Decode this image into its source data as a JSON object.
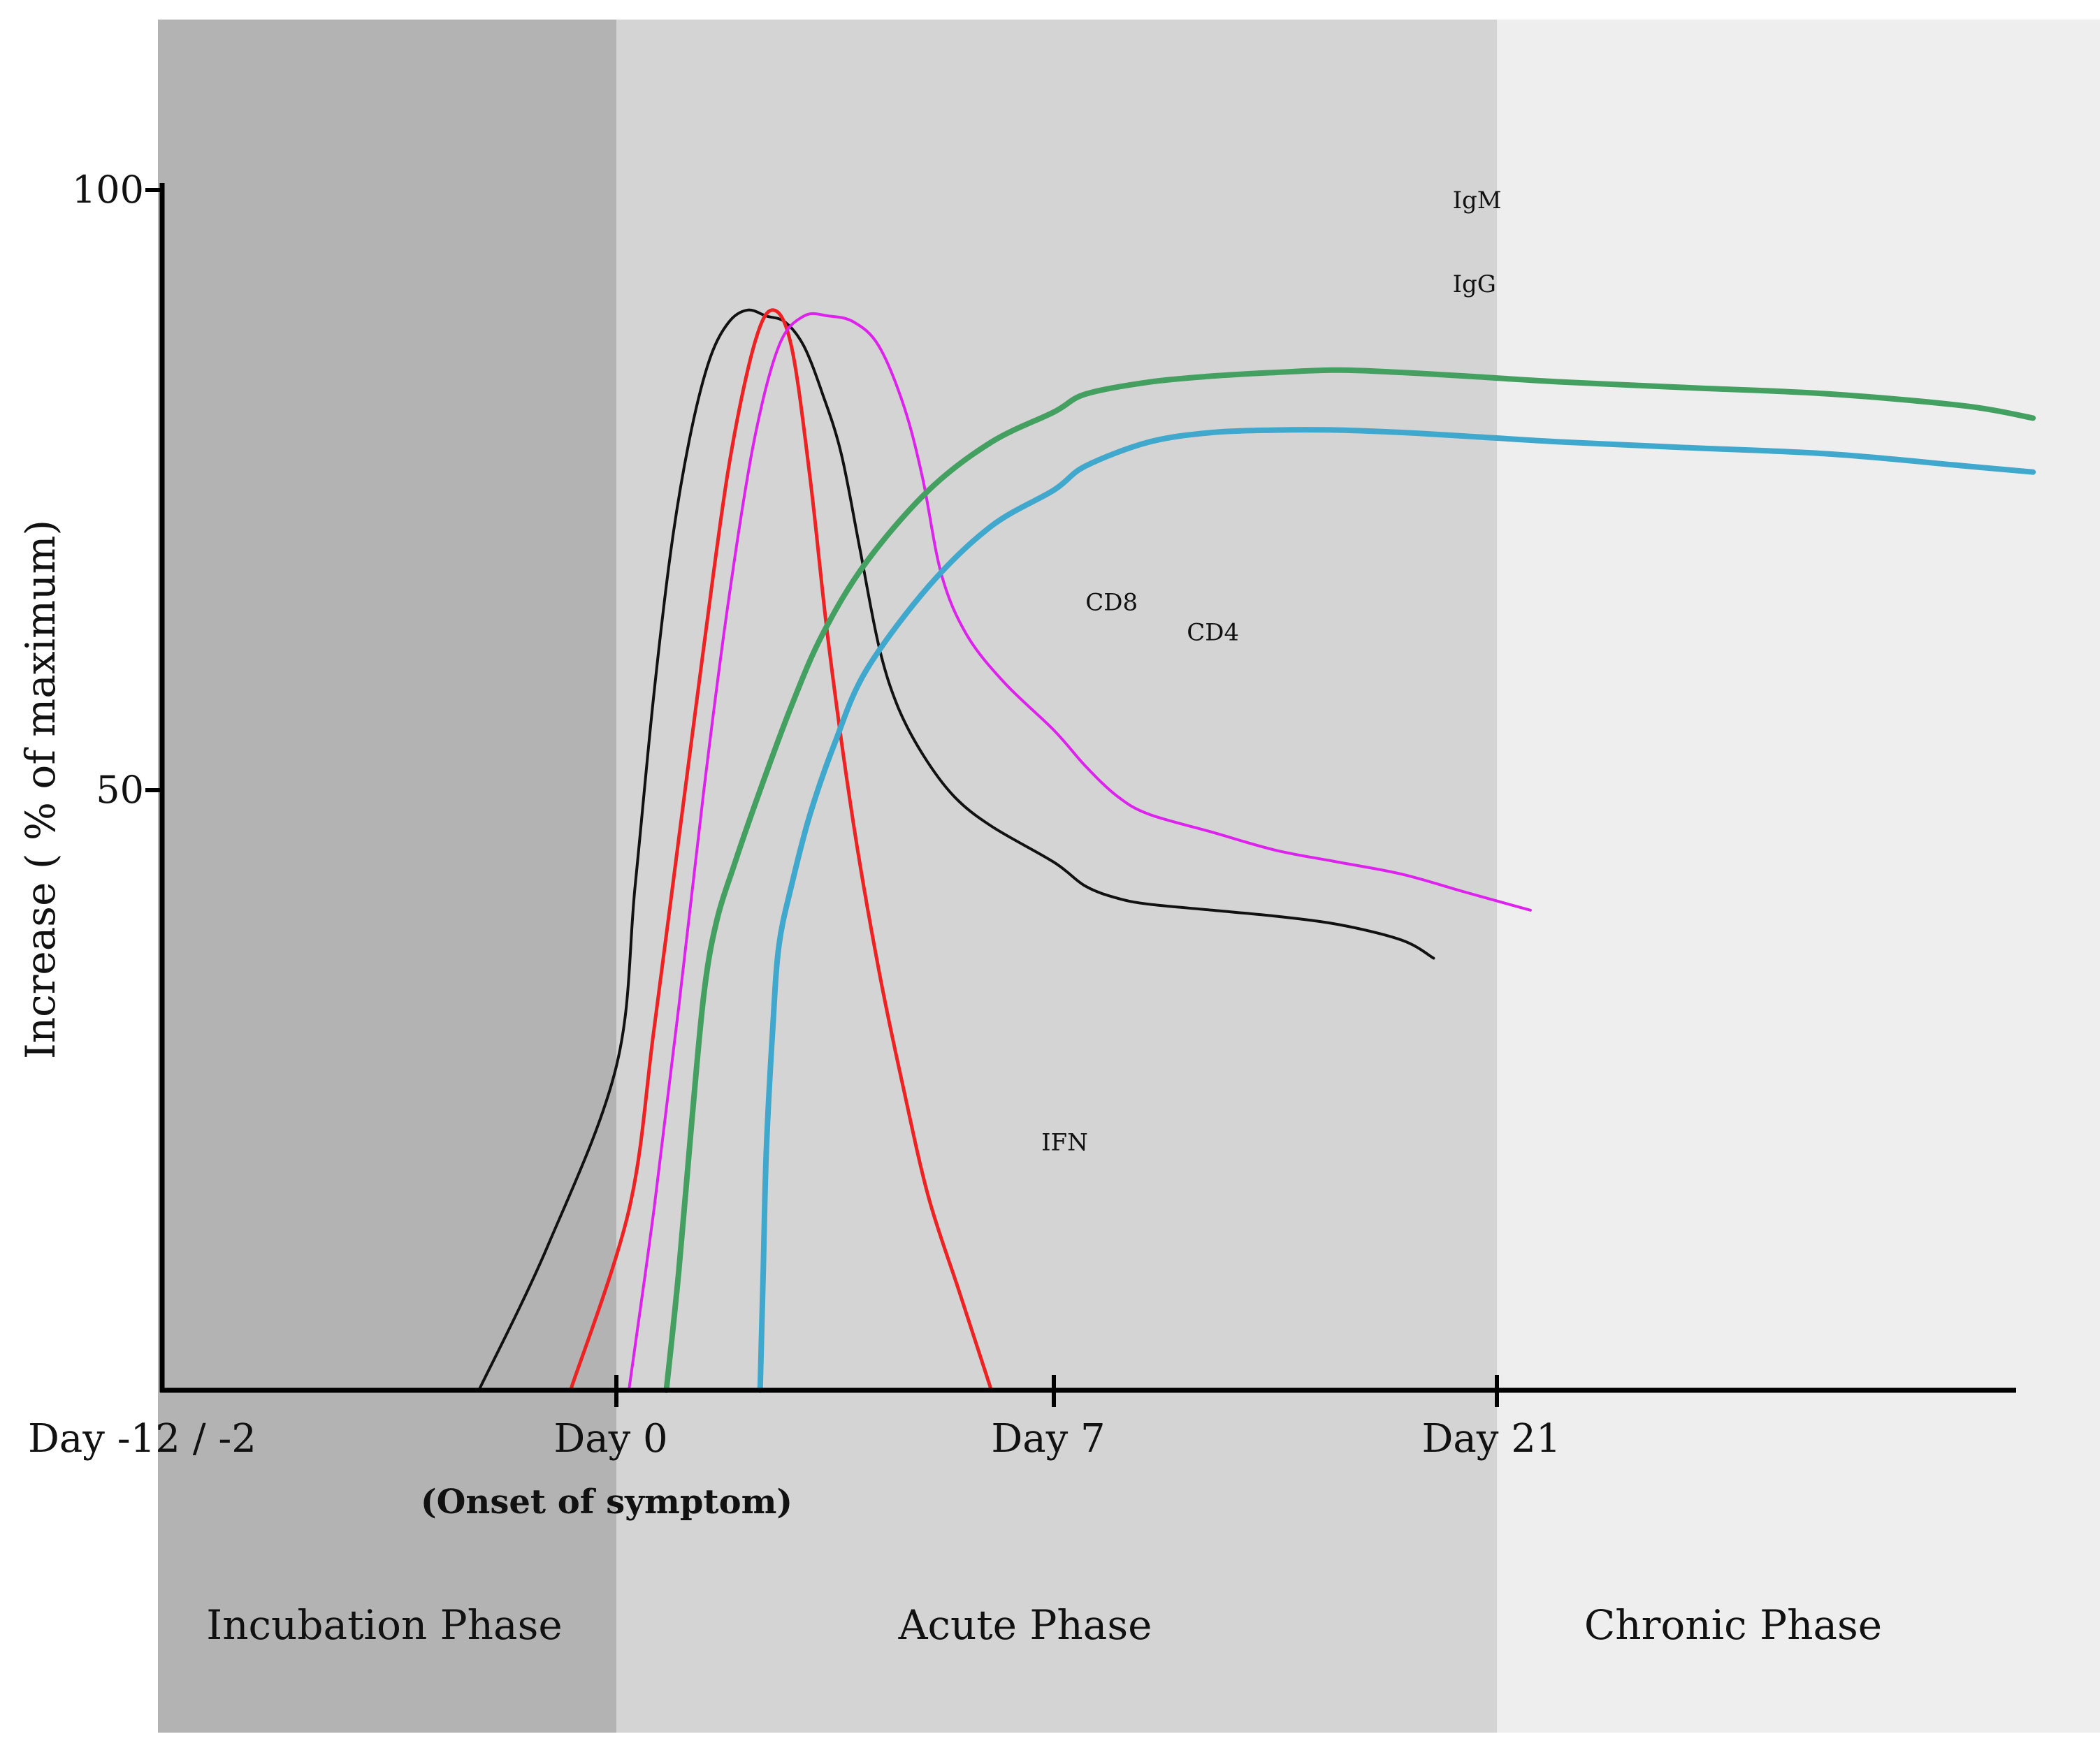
{
  "chart_data": {
    "type": "line",
    "title": "",
    "xlabel": "",
    "ylabel": "Increase ( % of maximum)",
    "ylim": [
      0,
      100
    ],
    "yticks": [
      {
        "value": 50,
        "label": "50"
      },
      {
        "value": 100,
        "label": "100"
      }
    ],
    "xticks": [
      {
        "day": -2,
        "label": "Day -12 / -2"
      },
      {
        "day": 0,
        "label": "Day 0"
      },
      {
        "day": 7,
        "label": "Day 7"
      },
      {
        "day": 21,
        "label": "Day 21"
      }
    ],
    "xtick_sublabel": {
      "day": 0,
      "label": "(Onset of symptom)"
    },
    "phases": [
      {
        "name": "Incubation Phase",
        "start_day": -2,
        "end_day": 0,
        "color": "#b3b3b3"
      },
      {
        "name": "Acute Phase",
        "start_day": 0,
        "end_day": 21,
        "color": "#d4d4d4"
      },
      {
        "name": "Chronic Phase",
        "start_day": 21,
        "end_day": 30,
        "color": "#eeeeee"
      }
    ],
    "series": [
      {
        "name": "CD8",
        "color": "#111111",
        "width": 4,
        "label_at": {
          "x": 8.0,
          "y": 65
        },
        "points": [
          [
            -0.6,
            0
          ],
          [
            -0.3,
            12
          ],
          [
            0,
            27
          ],
          [
            0.3,
            42
          ],
          [
            0.6,
            58
          ],
          [
            0.9,
            71
          ],
          [
            1.2,
            80
          ],
          [
            1.5,
            86
          ],
          [
            1.8,
            89
          ],
          [
            2.1,
            90
          ],
          [
            2.4,
            89.5
          ],
          [
            2.7,
            89
          ],
          [
            3.0,
            87
          ],
          [
            3.3,
            83
          ],
          [
            3.6,
            78
          ],
          [
            3.9,
            70
          ],
          [
            4.2,
            62
          ],
          [
            4.5,
            57
          ],
          [
            4.9,
            53
          ],
          [
            5.4,
            49.5
          ],
          [
            6.0,
            47
          ],
          [
            7.0,
            44
          ],
          [
            8.0,
            42
          ],
          [
            9.0,
            41
          ],
          [
            10.0,
            40.5
          ],
          [
            12.0,
            40
          ],
          [
            14.0,
            39.5
          ],
          [
            16.0,
            38.8
          ],
          [
            18.0,
            37.5
          ],
          [
            19.0,
            36
          ]
        ]
      },
      {
        "name": "IFN",
        "color": "#ee2222",
        "width": 5,
        "label_at": {
          "x": 6.8,
          "y": 20
        },
        "points": [
          [
            -0.2,
            0
          ],
          [
            0.2,
            15
          ],
          [
            0.6,
            30
          ],
          [
            1.0,
            46
          ],
          [
            1.4,
            62
          ],
          [
            1.8,
            77
          ],
          [
            2.2,
            87
          ],
          [
            2.5,
            90
          ],
          [
            2.8,
            87
          ],
          [
            3.1,
            76
          ],
          [
            3.4,
            62
          ],
          [
            3.8,
            47
          ],
          [
            4.2,
            35
          ],
          [
            4.6,
            25
          ],
          [
            5.0,
            16
          ],
          [
            5.5,
            8
          ],
          [
            6.0,
            0
          ]
        ]
      },
      {
        "name": "CD4",
        "color": "#dd22ee",
        "width": 4,
        "label_at": {
          "x": 11.2,
          "y": 62.5
        },
        "points": [
          [
            0.2,
            0
          ],
          [
            0.6,
            15
          ],
          [
            1.0,
            32
          ],
          [
            1.4,
            50
          ],
          [
            1.8,
            66
          ],
          [
            2.2,
            79
          ],
          [
            2.6,
            87
          ],
          [
            3.0,
            89.5
          ],
          [
            3.4,
            89.5
          ],
          [
            3.8,
            89
          ],
          [
            4.2,
            87
          ],
          [
            4.6,
            82
          ],
          [
            4.9,
            76
          ],
          [
            5.2,
            68
          ],
          [
            5.6,
            63
          ],
          [
            6.2,
            59
          ],
          [
            7.0,
            55
          ],
          [
            8.0,
            52
          ],
          [
            9.0,
            49.5
          ],
          [
            10.0,
            48
          ],
          [
            12.0,
            46.5
          ],
          [
            14.0,
            45
          ],
          [
            16.0,
            44
          ],
          [
            18.0,
            43
          ],
          [
            20.0,
            41.5
          ],
          [
            21.5,
            40
          ]
        ]
      },
      {
        "name": "IgM",
        "color": "#44a060",
        "width": 8,
        "label_at": {
          "x": 19.6,
          "y": 98.5
        },
        "points": [
          [
            0.8,
            0
          ],
          [
            1.0,
            10
          ],
          [
            1.2,
            22
          ],
          [
            1.4,
            33
          ],
          [
            1.6,
            39
          ],
          [
            1.9,
            44
          ],
          [
            2.3,
            50
          ],
          [
            2.8,
            57
          ],
          [
            3.3,
            63
          ],
          [
            4.0,
            69
          ],
          [
            5.0,
            75
          ],
          [
            6.0,
            79
          ],
          [
            7.0,
            81.5
          ],
          [
            8.0,
            83
          ],
          [
            10.0,
            84
          ],
          [
            12.0,
            84.5
          ],
          [
            14.0,
            84.8
          ],
          [
            16.0,
            85
          ],
          [
            18.0,
            84.8
          ],
          [
            20.0,
            84.5
          ],
          [
            22.0,
            84
          ],
          [
            24.0,
            83.5
          ],
          [
            26.0,
            83
          ],
          [
            28.0,
            82
          ],
          [
            29.0,
            81
          ]
        ]
      },
      {
        "name": "IgG",
        "color": "#40a8cc",
        "width": 8,
        "label_at": {
          "x": 19.6,
          "y": 91.5
        },
        "points": [
          [
            2.3,
            0
          ],
          [
            2.35,
            10
          ],
          [
            2.4,
            20
          ],
          [
            2.5,
            30
          ],
          [
            2.6,
            37
          ],
          [
            2.8,
            42
          ],
          [
            3.1,
            48
          ],
          [
            3.5,
            54
          ],
          [
            4.0,
            60
          ],
          [
            5.0,
            67
          ],
          [
            6.0,
            72
          ],
          [
            7.0,
            75
          ],
          [
            8.0,
            77
          ],
          [
            10.0,
            79
          ],
          [
            12.0,
            79.8
          ],
          [
            14.0,
            80
          ],
          [
            16.0,
            80
          ],
          [
            18.0,
            79.8
          ],
          [
            20.0,
            79.5
          ],
          [
            22.0,
            79
          ],
          [
            24.0,
            78.5
          ],
          [
            26.0,
            78
          ],
          [
            28.0,
            77
          ],
          [
            29.0,
            76.5
          ]
        ]
      }
    ]
  }
}
